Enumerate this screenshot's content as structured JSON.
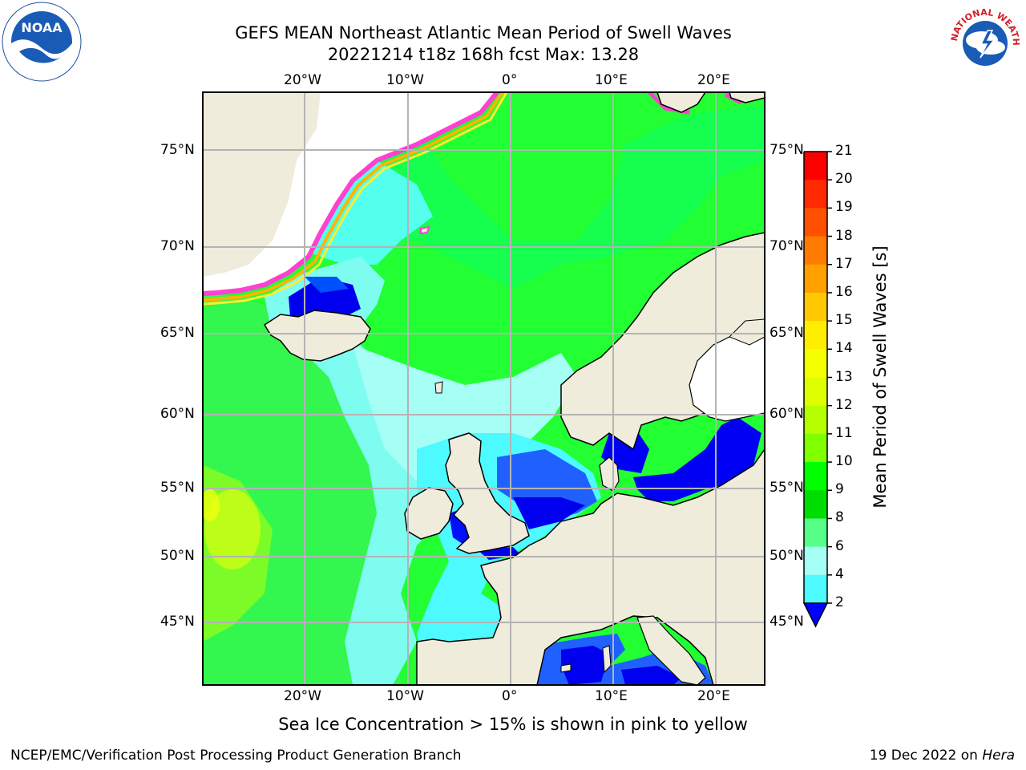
{
  "header": {
    "title_line1": "GEFS MEAN Northeast Atlantic Mean Period of Swell Waves",
    "title_line2": "20221214 t18z 168h fcst   Max: 13.28"
  },
  "map": {
    "lon_labels": [
      "20°W",
      "10°W",
      "0°",
      "10°E",
      "20°E"
    ],
    "lat_labels": [
      "75°N",
      "70°N",
      "65°N",
      "60°N",
      "55°N",
      "50°N",
      "45°N"
    ],
    "colors": {
      "land": "#efecdc",
      "ice_land": "#ffffff",
      "grid": "#b4b4b4"
    }
  },
  "colorbar": {
    "label": "Mean Period of Swell Waves [s]",
    "ticks": [
      "21",
      "20",
      "19",
      "18",
      "17",
      "16",
      "15",
      "14",
      "13",
      "12",
      "11",
      "10",
      "9",
      "8",
      "6",
      "4",
      "2"
    ],
    "colors": [
      "#ff0000",
      "#ff2a00",
      "#ff5000",
      "#ff7a00",
      "#ff9f00",
      "#ffc800",
      "#ffee00",
      "#f5ff00",
      "#deff00",
      "#b6ff00",
      "#7fff00",
      "#00ff00",
      "#00dd00",
      "#55ff88",
      "#a5fff5",
      "#4cfaff",
      "#00eaff",
      "#0090ff",
      "#0000ff"
    ]
  },
  "caption": "Sea Ice Concentration > 15% is shown in pink to yellow",
  "footer": {
    "left": "NCEP/EMC/Verification Post Processing Product Generation Branch",
    "right_prefix": "19 Dec 2022 on ",
    "right_host": "Hera"
  },
  "logos": {
    "noaa_text": "NOAA",
    "nws_text": "NATIONAL WEATHER SERVICE"
  }
}
